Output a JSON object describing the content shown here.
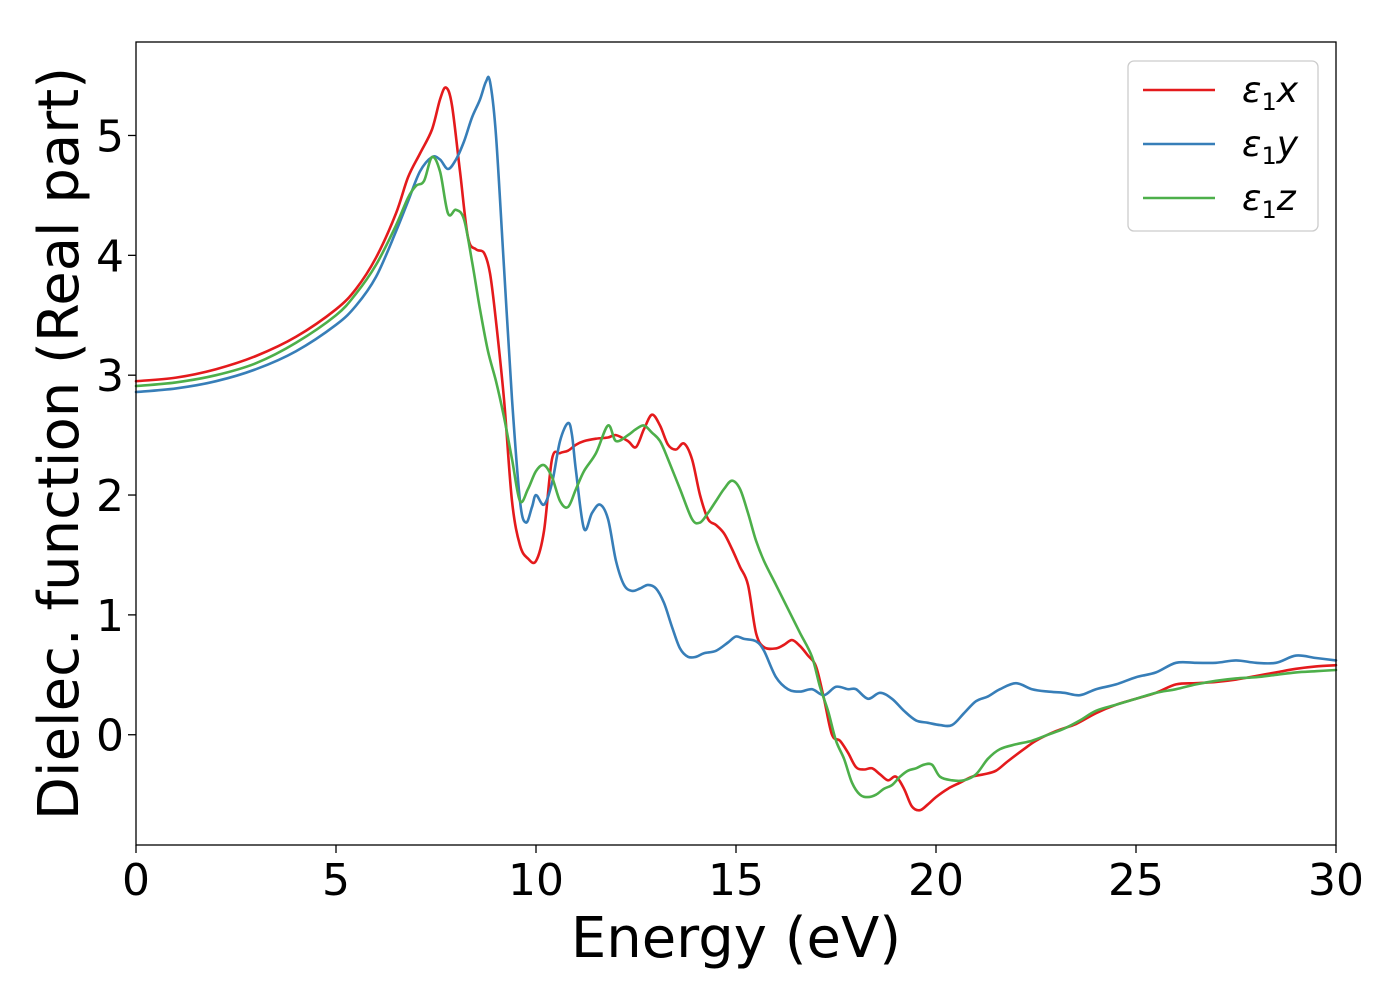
{
  "chart_data": {
    "type": "line",
    "xlabel": "Energy (eV)",
    "ylabel": "Dielec. function (Real part)",
    "xlim": [
      0,
      30
    ],
    "ylim": [
      -0.92,
      5.78
    ],
    "xticks": [
      0,
      5,
      10,
      15,
      20,
      25,
      30
    ],
    "yticks": [
      0,
      1,
      2,
      3,
      4,
      5
    ],
    "grid": false,
    "legend_position": "top-right",
    "series": [
      {
        "name": "ε₁x",
        "legend_base": "ε",
        "legend_sub": "1",
        "legend_suffix": "x",
        "color": "#e41a1c",
        "x": [
          0,
          1,
          2,
          3,
          4,
          5,
          5.5,
          6,
          6.5,
          6.8,
          7.1,
          7.4,
          7.6,
          7.75,
          7.9,
          8.1,
          8.3,
          8.5,
          8.7,
          8.85,
          9.0,
          9.2,
          9.4,
          9.6,
          9.8,
          10.0,
          10.2,
          10.4,
          10.6,
          10.8,
          11.0,
          11.2,
          11.5,
          11.8,
          12.0,
          12.3,
          12.5,
          12.7,
          12.9,
          13.1,
          13.3,
          13.5,
          13.7,
          13.9,
          14.1,
          14.3,
          14.5,
          14.7,
          14.9,
          15.1,
          15.3,
          15.5,
          15.7,
          16.0,
          16.2,
          16.4,
          16.6,
          16.8,
          17.0,
          17.2,
          17.4,
          17.6,
          17.8,
          18.0,
          18.2,
          18.4,
          18.6,
          18.8,
          19.0,
          19.2,
          19.4,
          19.6,
          19.8,
          20.0,
          20.3,
          20.6,
          20.9,
          21.2,
          21.5,
          21.8,
          22.2,
          22.5,
          23.0,
          23.5,
          24.0,
          24.5,
          25.0,
          25.5,
          26.0,
          26.5,
          27.0,
          27.5,
          28.0,
          28.5,
          29.0,
          29.5,
          30
        ],
        "y": [
          2.95,
          2.98,
          3.05,
          3.16,
          3.32,
          3.55,
          3.72,
          3.98,
          4.35,
          4.65,
          4.85,
          5.05,
          5.3,
          5.4,
          5.25,
          4.7,
          4.15,
          4.05,
          4.02,
          3.85,
          3.45,
          2.8,
          1.95,
          1.58,
          1.47,
          1.45,
          1.7,
          2.3,
          2.35,
          2.37,
          2.42,
          2.45,
          2.47,
          2.48,
          2.5,
          2.45,
          2.4,
          2.55,
          2.67,
          2.58,
          2.42,
          2.38,
          2.43,
          2.3,
          2.0,
          1.8,
          1.75,
          1.68,
          1.55,
          1.4,
          1.25,
          0.85,
          0.73,
          0.72,
          0.75,
          0.79,
          0.74,
          0.66,
          0.57,
          0.3,
          0.0,
          -0.05,
          -0.15,
          -0.27,
          -0.29,
          -0.28,
          -0.33,
          -0.38,
          -0.35,
          -0.45,
          -0.6,
          -0.63,
          -0.58,
          -0.52,
          -0.45,
          -0.4,
          -0.35,
          -0.33,
          -0.3,
          -0.22,
          -0.12,
          -0.05,
          0.03,
          0.09,
          0.18,
          0.25,
          0.3,
          0.35,
          0.42,
          0.43,
          0.44,
          0.46,
          0.49,
          0.52,
          0.55,
          0.57,
          0.58
        ]
      },
      {
        "name": "ε₁y",
        "legend_base": "ε",
        "legend_sub": "1",
        "legend_suffix": "y",
        "color": "#377eb8",
        "x": [
          0,
          1,
          2,
          3,
          4,
          5,
          5.5,
          6,
          6.5,
          6.8,
          7.1,
          7.4,
          7.6,
          7.8,
          8.0,
          8.2,
          8.4,
          8.6,
          8.75,
          8.85,
          9.0,
          9.2,
          9.4,
          9.6,
          9.75,
          9.9,
          10.0,
          10.2,
          10.4,
          10.6,
          10.8,
          10.9,
          11.0,
          11.2,
          11.4,
          11.6,
          11.8,
          12.0,
          12.2,
          12.4,
          12.6,
          12.8,
          13.0,
          13.2,
          13.4,
          13.6,
          13.8,
          14.0,
          14.2,
          14.5,
          14.8,
          15.0,
          15.2,
          15.5,
          15.7,
          16.0,
          16.3,
          16.6,
          16.9,
          17.2,
          17.5,
          17.8,
          18.0,
          18.3,
          18.6,
          18.9,
          19.2,
          19.5,
          19.8,
          20.1,
          20.4,
          20.7,
          21.0,
          21.3,
          21.6,
          22.0,
          22.4,
          22.8,
          23.2,
          23.6,
          24.0,
          24.5,
          25.0,
          25.5,
          26.0,
          26.5,
          27.0,
          27.5,
          28.0,
          28.5,
          29.0,
          29.5,
          30
        ],
        "y": [
          2.86,
          2.89,
          2.95,
          3.05,
          3.2,
          3.42,
          3.58,
          3.82,
          4.2,
          4.45,
          4.7,
          4.82,
          4.8,
          4.72,
          4.8,
          4.95,
          5.15,
          5.3,
          5.45,
          5.45,
          5.0,
          3.9,
          2.8,
          1.95,
          1.77,
          1.9,
          2.0,
          1.92,
          2.1,
          2.45,
          2.6,
          2.5,
          2.2,
          1.72,
          1.85,
          1.92,
          1.8,
          1.45,
          1.25,
          1.2,
          1.22,
          1.25,
          1.22,
          1.1,
          0.9,
          0.72,
          0.65,
          0.65,
          0.68,
          0.7,
          0.77,
          0.82,
          0.8,
          0.78,
          0.7,
          0.48,
          0.38,
          0.36,
          0.38,
          0.33,
          0.4,
          0.38,
          0.38,
          0.3,
          0.35,
          0.3,
          0.2,
          0.12,
          0.1,
          0.08,
          0.08,
          0.18,
          0.28,
          0.32,
          0.38,
          0.43,
          0.38,
          0.36,
          0.35,
          0.33,
          0.38,
          0.42,
          0.48,
          0.52,
          0.6,
          0.6,
          0.6,
          0.62,
          0.6,
          0.6,
          0.66,
          0.64,
          0.62
        ]
      },
      {
        "name": "ε₁z",
        "legend_base": "ε",
        "legend_sub": "1",
        "legend_suffix": "z",
        "color": "#4daf4a",
        "x": [
          0,
          1,
          2,
          3,
          4,
          5,
          5.5,
          6,
          6.5,
          6.8,
          7.0,
          7.2,
          7.4,
          7.6,
          7.8,
          8.0,
          8.2,
          8.4,
          8.6,
          8.8,
          9.0,
          9.2,
          9.4,
          9.6,
          9.8,
          10.0,
          10.2,
          10.4,
          10.6,
          10.8,
          11.0,
          11.2,
          11.5,
          11.8,
          12.0,
          12.3,
          12.5,
          12.7,
          12.9,
          13.1,
          13.3,
          13.6,
          13.9,
          14.1,
          14.3,
          14.5,
          14.7,
          14.9,
          15.1,
          15.3,
          15.5,
          15.7,
          16.0,
          16.3,
          16.6,
          16.9,
          17.1,
          17.3,
          17.5,
          17.7,
          17.9,
          18.1,
          18.3,
          18.5,
          18.7,
          18.9,
          19.1,
          19.3,
          19.5,
          19.7,
          19.9,
          20.1,
          20.4,
          20.7,
          21.0,
          21.3,
          21.6,
          22.0,
          22.4,
          22.8,
          23.2,
          23.6,
          24.0,
          24.5,
          25.0,
          25.5,
          26.0,
          26.5,
          27.0,
          27.5,
          28.0,
          28.5,
          29.0,
          29.5,
          30
        ],
        "y": [
          2.91,
          2.94,
          3.0,
          3.1,
          3.27,
          3.5,
          3.68,
          3.92,
          4.25,
          4.48,
          4.58,
          4.62,
          4.82,
          4.7,
          4.35,
          4.38,
          4.3,
          3.95,
          3.55,
          3.2,
          2.95,
          2.65,
          2.3,
          1.95,
          2.05,
          2.2,
          2.25,
          2.15,
          1.95,
          1.9,
          2.05,
          2.2,
          2.35,
          2.58,
          2.45,
          2.5,
          2.55,
          2.58,
          2.52,
          2.45,
          2.3,
          2.05,
          1.8,
          1.77,
          1.85,
          1.95,
          2.05,
          2.12,
          2.05,
          1.85,
          1.62,
          1.45,
          1.25,
          1.05,
          0.85,
          0.65,
          0.4,
          0.2,
          -0.05,
          -0.2,
          -0.4,
          -0.5,
          -0.52,
          -0.5,
          -0.45,
          -0.42,
          -0.35,
          -0.3,
          -0.28,
          -0.25,
          -0.25,
          -0.35,
          -0.38,
          -0.38,
          -0.33,
          -0.2,
          -0.12,
          -0.08,
          -0.05,
          0.0,
          0.05,
          0.12,
          0.2,
          0.25,
          0.3,
          0.35,
          0.38,
          0.42,
          0.45,
          0.47,
          0.48,
          0.5,
          0.52,
          0.53,
          0.54
        ]
      }
    ]
  }
}
